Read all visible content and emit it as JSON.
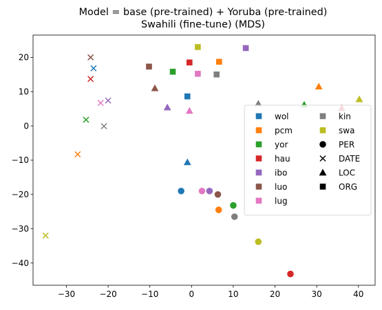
{
  "chart_data": {
    "type": "scatter",
    "title": "Model = base (pre-trained) + Yoruba (pre-trained)\nSwahili (fine-tune) (MDS)",
    "xlabel": "",
    "ylabel": "",
    "xlim": [
      -38,
      44
    ],
    "ylim": [
      -46.5,
      26.5
    ],
    "xticks": [
      -30,
      -20,
      -10,
      0,
      10,
      20,
      30,
      40
    ],
    "yticks": [
      -40,
      -30,
      -20,
      -10,
      0,
      10,
      20
    ],
    "grid": false,
    "legend_position": "center-right",
    "languages": [
      {
        "name": "wol",
        "color": "#1f77b4"
      },
      {
        "name": "pcm",
        "color": "#ff7f0e"
      },
      {
        "name": "yor",
        "color": "#2ca02c"
      },
      {
        "name": "hau",
        "color": "#d62728"
      },
      {
        "name": "ibo",
        "color": "#9467bd"
      },
      {
        "name": "luo",
        "color": "#8c564b"
      },
      {
        "name": "lug",
        "color": "#e377c2"
      },
      {
        "name": "kin",
        "color": "#7f7f7f"
      },
      {
        "name": "swa",
        "color": "#bcbd22"
      }
    ],
    "entity_types": [
      {
        "name": "PER",
        "marker": "circle"
      },
      {
        "name": "DATE",
        "marker": "x"
      },
      {
        "name": "LOC",
        "marker": "triangle"
      },
      {
        "name": "ORG",
        "marker": "square"
      }
    ],
    "points": [
      {
        "lang": "wol",
        "type": "PER",
        "x": -2.5,
        "y": -19
      },
      {
        "lang": "pcm",
        "type": "PER",
        "x": 6.5,
        "y": -24.5
      },
      {
        "lang": "yor",
        "type": "PER",
        "x": 10,
        "y": -23.2
      },
      {
        "lang": "hau",
        "type": "PER",
        "x": 23.7,
        "y": -43.2
      },
      {
        "lang": "ibo",
        "type": "PER",
        "x": 4.3,
        "y": -19
      },
      {
        "lang": "luo",
        "type": "PER",
        "x": 6.3,
        "y": -20
      },
      {
        "lang": "lug",
        "type": "PER",
        "x": 2.5,
        "y": -19
      },
      {
        "lang": "kin",
        "type": "PER",
        "x": 10.3,
        "y": -26.5
      },
      {
        "lang": "swa",
        "type": "PER",
        "x": 16,
        "y": -33.8
      },
      {
        "lang": "wol",
        "type": "DATE",
        "x": -23.5,
        "y": 16.8
      },
      {
        "lang": "pcm",
        "type": "DATE",
        "x": -27.3,
        "y": -8.3
      },
      {
        "lang": "yor",
        "type": "DATE",
        "x": -25.3,
        "y": 1.8
      },
      {
        "lang": "hau",
        "type": "DATE",
        "x": -24.2,
        "y": 13.7
      },
      {
        "lang": "ibo",
        "type": "DATE",
        "x": -20,
        "y": 7.4
      },
      {
        "lang": "luo",
        "type": "DATE",
        "x": -24.2,
        "y": 20
      },
      {
        "lang": "lug",
        "type": "DATE",
        "x": -21.8,
        "y": 6.7
      },
      {
        "lang": "kin",
        "type": "DATE",
        "x": -21,
        "y": -0.1
      },
      {
        "lang": "swa",
        "type": "DATE",
        "x": -35,
        "y": -32
      },
      {
        "lang": "wol",
        "type": "LOC",
        "x": -1,
        "y": -10.6
      },
      {
        "lang": "pcm",
        "type": "LOC",
        "x": 30.5,
        "y": 11.5
      },
      {
        "lang": "yor",
        "type": "LOC",
        "x": 27,
        "y": 6.2
      },
      {
        "lang": "hau",
        "type": "LOC",
        "x": 36,
        "y": 5.2
      },
      {
        "lang": "ibo",
        "type": "LOC",
        "x": -5.8,
        "y": 5.4
      },
      {
        "lang": "luo",
        "type": "LOC",
        "x": -8.8,
        "y": 11
      },
      {
        "lang": "lug",
        "type": "LOC",
        "x": -0.5,
        "y": 4.4
      },
      {
        "lang": "kin",
        "type": "LOC",
        "x": 16,
        "y": 6.5
      },
      {
        "lang": "swa",
        "type": "LOC",
        "x": 40.2,
        "y": 7.8
      },
      {
        "lang": "wol",
        "type": "ORG",
        "x": -1,
        "y": 8.6
      },
      {
        "lang": "pcm",
        "type": "ORG",
        "x": 6.6,
        "y": 18.7
      },
      {
        "lang": "yor",
        "type": "ORG",
        "x": -4.5,
        "y": 15.8
      },
      {
        "lang": "hau",
        "type": "ORG",
        "x": -0.5,
        "y": 18.5
      },
      {
        "lang": "ibo",
        "type": "ORG",
        "x": 13,
        "y": 22.7
      },
      {
        "lang": "luo",
        "type": "ORG",
        "x": -10.2,
        "y": 17.3
      },
      {
        "lang": "lug",
        "type": "ORG",
        "x": 1.5,
        "y": 15.2
      },
      {
        "lang": "kin",
        "type": "ORG",
        "x": 6,
        "y": 15
      },
      {
        "lang": "swa",
        "type": "ORG",
        "x": 1.5,
        "y": 23
      }
    ]
  }
}
